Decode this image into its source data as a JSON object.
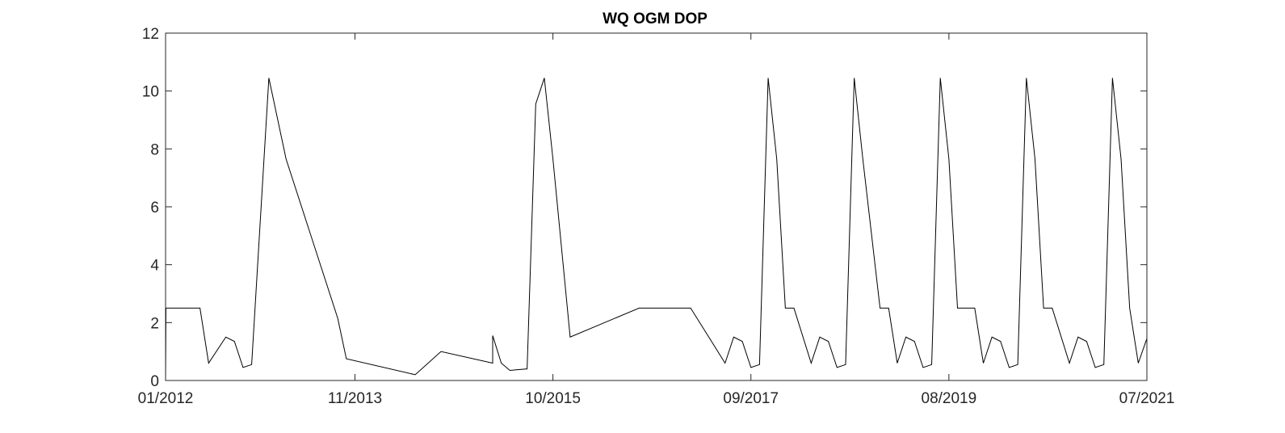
{
  "chart_data": {
    "type": "line",
    "title": "WQ OGM DOP",
    "xlabel": "",
    "ylabel": "",
    "xlim": [
      "2012-01",
      "2021-07"
    ],
    "ylim": [
      0,
      12
    ],
    "y_ticks": [
      0,
      2,
      4,
      6,
      8,
      10,
      12
    ],
    "x_ticks": [
      "01/2012",
      "11/2013",
      "10/2015",
      "09/2017",
      "08/2019",
      "07/2021"
    ],
    "grid": false,
    "legend": "none",
    "line_color": "#000000",
    "series": [
      {
        "x": [
          "2012-01",
          "2012-01",
          "2012-02",
          "2012-05",
          "2012-06",
          "2012-08",
          "2012-09",
          "2012-10",
          "2012-11",
          "2013-01",
          "2013-03",
          "2013-09",
          "2013-10",
          "2014-06",
          "2014-09",
          "2015-03",
          "2015-03",
          "2015-04",
          "2015-05",
          "2015-07",
          "2015-08",
          "2015-09",
          "2015-10",
          "2015-12",
          "2016-08",
          "2017-02",
          "2017-06",
          "2017-07",
          "2017-08",
          "2017-09",
          "2017-10",
          "2017-11",
          "2017-12",
          "2018-01",
          "2018-02",
          "2018-04",
          "2018-05",
          "2018-06",
          "2018-07",
          "2018-08",
          "2018-09",
          "2018-10",
          "2018-12",
          "2019-01",
          "2019-02",
          "2019-03",
          "2019-04",
          "2019-05",
          "2019-06",
          "2019-07",
          "2019-08",
          "2019-09",
          "2019-11",
          "2019-12",
          "2020-01",
          "2020-02",
          "2020-03",
          "2020-04",
          "2020-05",
          "2020-06",
          "2020-07",
          "2020-08",
          "2020-10",
          "2020-11",
          "2020-12",
          "2021-01",
          "2021-02",
          "2021-03",
          "2021-04",
          "2021-05",
          "2021-06",
          "2021-07"
        ],
        "y": [
          0.0,
          2.5,
          2.5,
          2.5,
          0.6,
          1.5,
          1.35,
          0.45,
          0.55,
          10.45,
          7.65,
          2.15,
          0.75,
          0.2,
          1.0,
          0.6,
          1.55,
          0.6,
          0.35,
          0.4,
          9.55,
          10.45,
          7.65,
          1.5,
          2.5,
          2.5,
          0.6,
          1.5,
          1.35,
          0.45,
          0.55,
          10.45,
          7.65,
          2.5,
          2.5,
          0.6,
          1.5,
          1.35,
          0.45,
          0.55,
          10.45,
          7.65,
          2.5,
          2.5,
          0.6,
          1.5,
          1.35,
          0.45,
          0.55,
          10.45,
          7.65,
          2.5,
          2.5,
          0.6,
          1.5,
          1.35,
          0.45,
          0.55,
          10.45,
          7.65,
          2.5,
          2.5,
          0.6,
          1.5,
          1.35,
          0.45,
          0.55,
          10.45,
          7.65,
          2.5,
          0.6,
          1.45
        ]
      }
    ]
  }
}
